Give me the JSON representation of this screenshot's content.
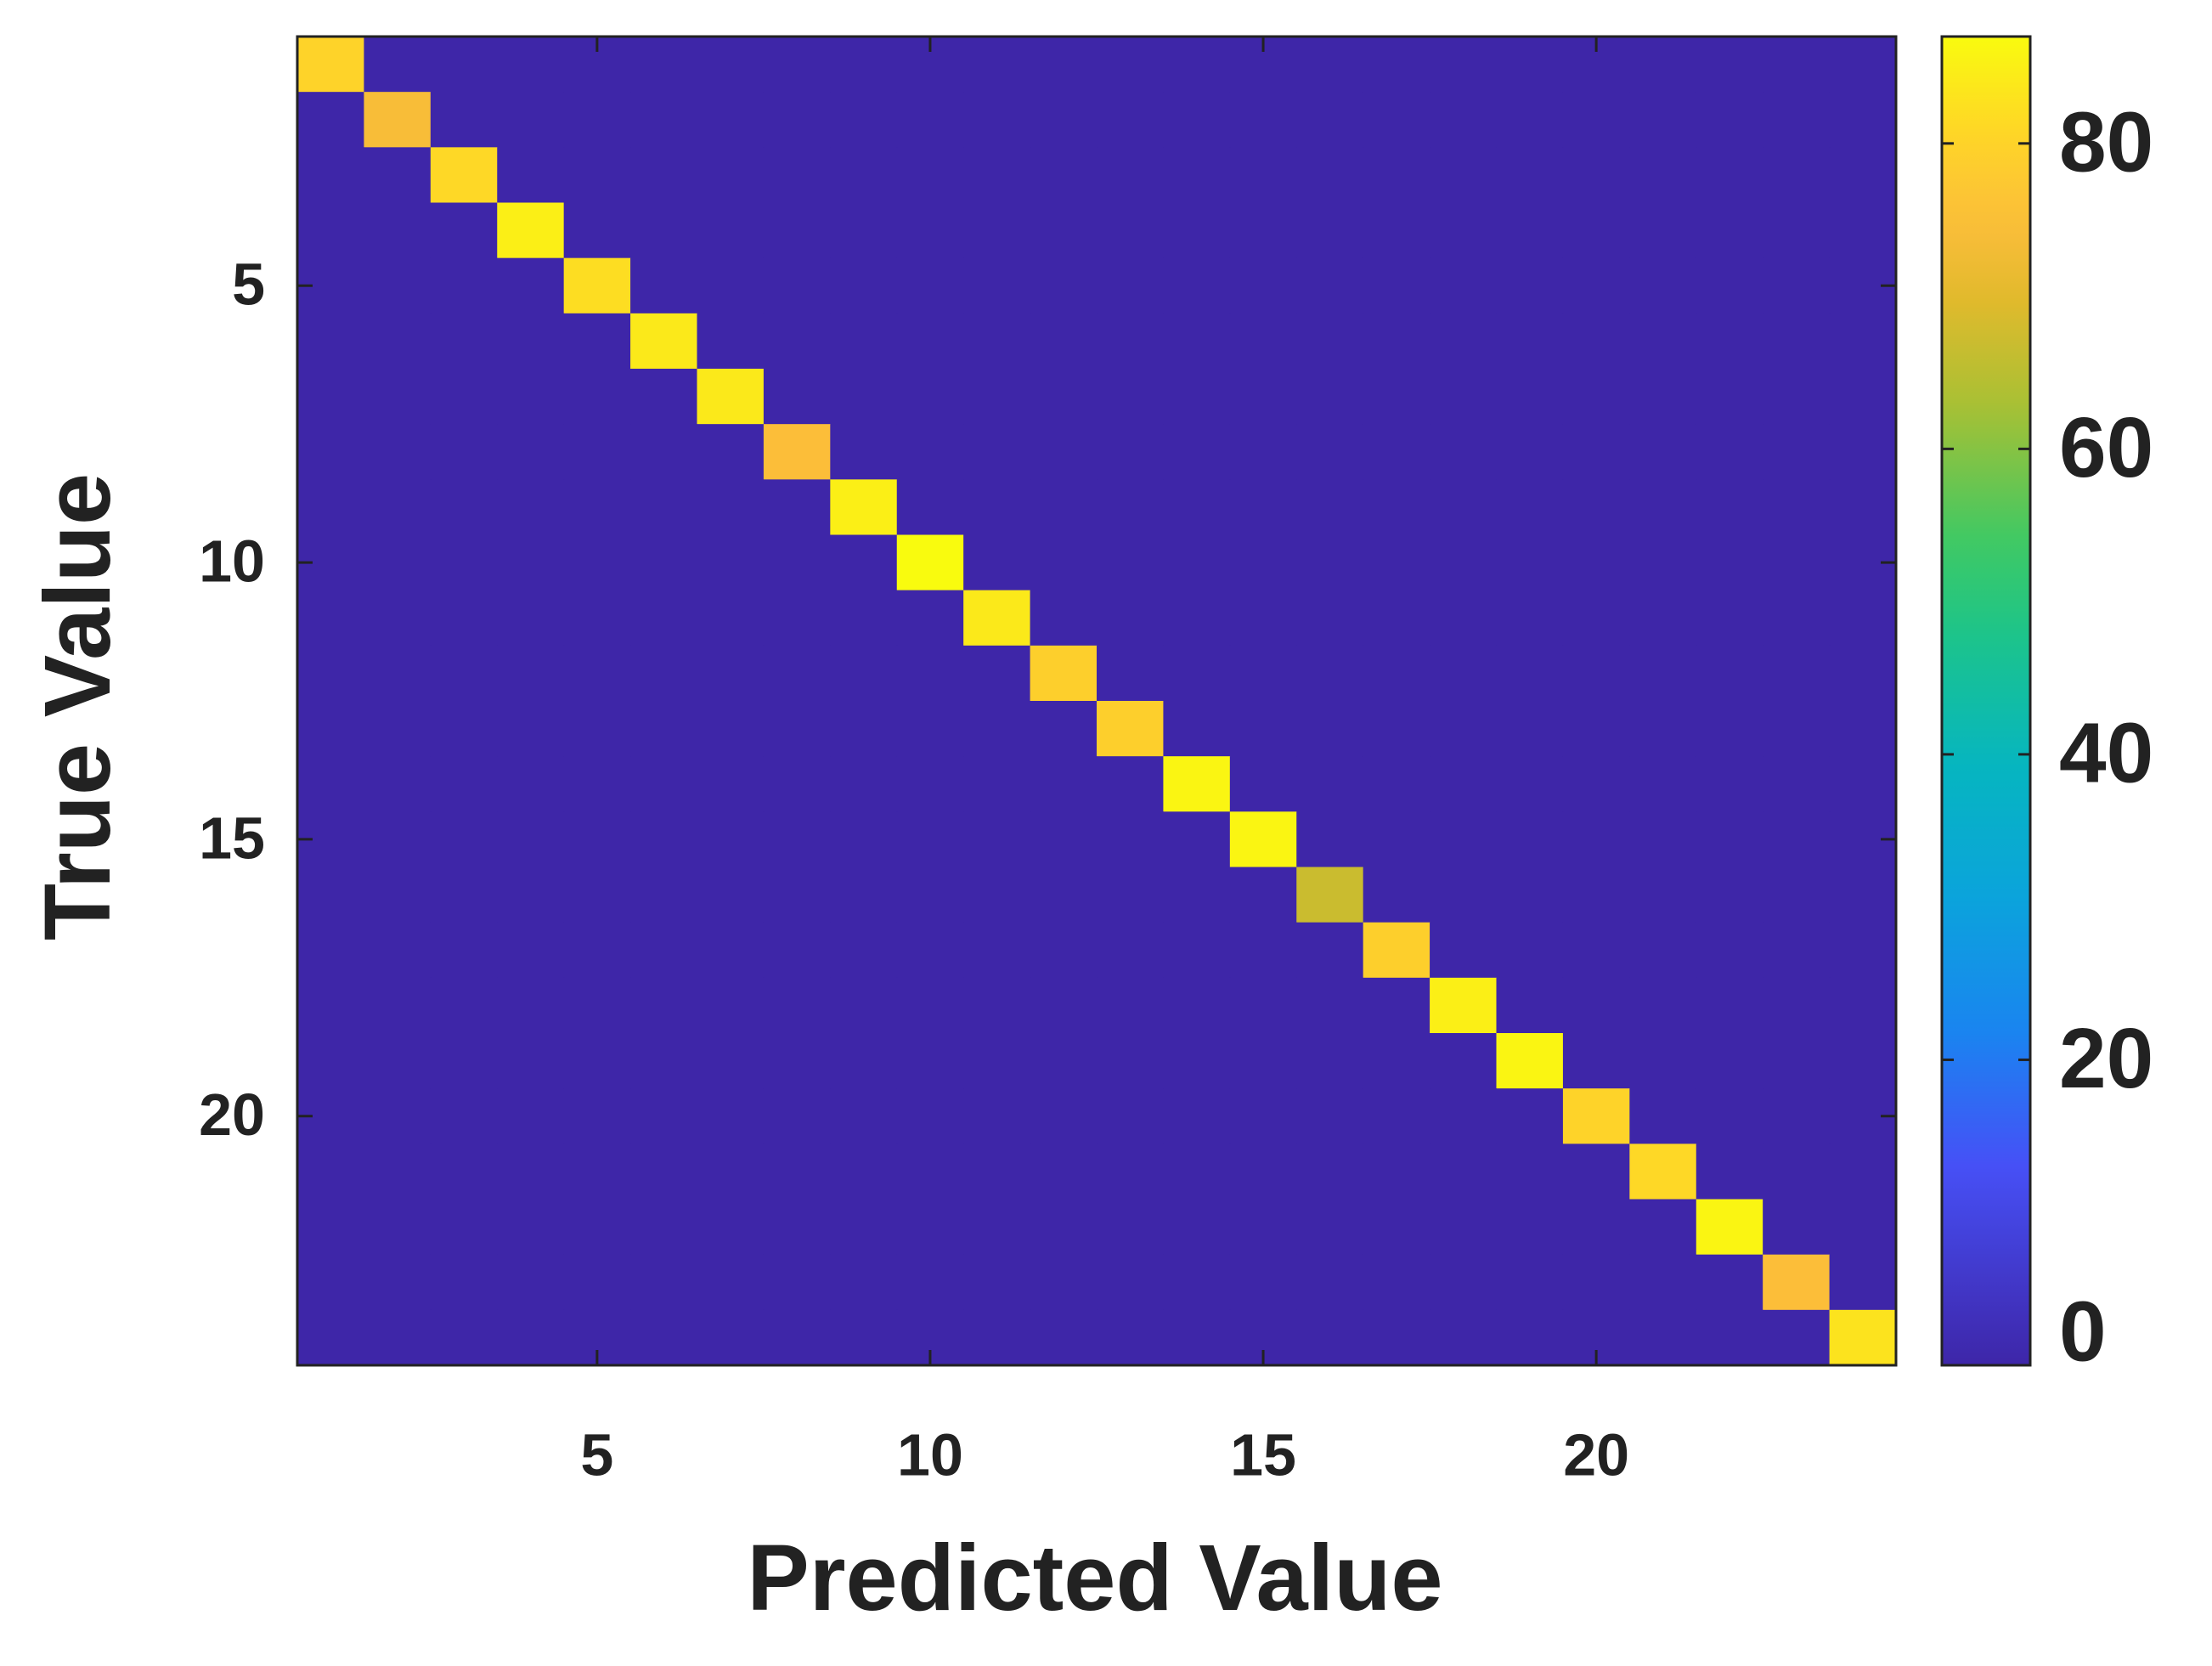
{
  "chart_data": {
    "type": "heatmap",
    "x_label": "Predicted Value",
    "y_label": "True Value",
    "x": [
      1,
      2,
      3,
      4,
      5,
      6,
      7,
      8,
      9,
      10,
      11,
      12,
      13,
      14,
      15,
      16,
      17,
      18,
      19,
      20,
      21,
      22,
      23,
      24
    ],
    "y": [
      1,
      2,
      3,
      4,
      5,
      6,
      7,
      8,
      9,
      10,
      11,
      12,
      13,
      14,
      15,
      16,
      17,
      18,
      19,
      20,
      21,
      22,
      23,
      24
    ],
    "values": [
      [
        80,
        0,
        0,
        0,
        0,
        0,
        0,
        0,
        0,
        0,
        0,
        0,
        0,
        0,
        0,
        0,
        0,
        0,
        0,
        0,
        0,
        0,
        0,
        0
      ],
      [
        0,
        74,
        0,
        0,
        0,
        0,
        0,
        0,
        0,
        0,
        0,
        0,
        0,
        0,
        0,
        0,
        0,
        0,
        0,
        0,
        0,
        0,
        0,
        0
      ],
      [
        0,
        0,
        81,
        0,
        0,
        0,
        0,
        0,
        0,
        0,
        0,
        0,
        0,
        0,
        0,
        0,
        0,
        0,
        0,
        0,
        0,
        0,
        0,
        0
      ],
      [
        0,
        0,
        0,
        85,
        0,
        0,
        0,
        0,
        0,
        0,
        0,
        0,
        0,
        0,
        0,
        0,
        0,
        0,
        0,
        0,
        0,
        0,
        0,
        0
      ],
      [
        0,
        0,
        0,
        0,
        82,
        0,
        0,
        0,
        0,
        0,
        0,
        0,
        0,
        0,
        0,
        0,
        0,
        0,
        0,
        0,
        0,
        0,
        0,
        0
      ],
      [
        0,
        0,
        0,
        0,
        0,
        84,
        0,
        0,
        0,
        0,
        0,
        0,
        0,
        0,
        0,
        0,
        0,
        0,
        0,
        0,
        0,
        0,
        0,
        0
      ],
      [
        0,
        0,
        0,
        0,
        0,
        0,
        84,
        0,
        0,
        0,
        0,
        0,
        0,
        0,
        0,
        0,
        0,
        0,
        0,
        0,
        0,
        0,
        0,
        0
      ],
      [
        0,
        0,
        0,
        0,
        0,
        0,
        0,
        75,
        0,
        0,
        0,
        0,
        0,
        0,
        0,
        0,
        0,
        0,
        0,
        0,
        0,
        0,
        0,
        0
      ],
      [
        0,
        0,
        0,
        0,
        0,
        0,
        0,
        0,
        85,
        0,
        0,
        0,
        0,
        0,
        0,
        0,
        0,
        0,
        0,
        0,
        0,
        0,
        0,
        0
      ],
      [
        0,
        0,
        0,
        0,
        0,
        0,
        0,
        0,
        0,
        87,
        0,
        0,
        0,
        0,
        0,
        0,
        0,
        0,
        0,
        0,
        0,
        0,
        0,
        0
      ],
      [
        0,
        0,
        0,
        0,
        0,
        0,
        0,
        0,
        0,
        0,
        84,
        0,
        0,
        0,
        0,
        0,
        0,
        0,
        0,
        0,
        0,
        0,
        0,
        0
      ],
      [
        0,
        0,
        0,
        0,
        0,
        0,
        0,
        0,
        0,
        0,
        0,
        79,
        0,
        0,
        0,
        0,
        0,
        0,
        0,
        0,
        0,
        0,
        0,
        0
      ],
      [
        0,
        0,
        0,
        0,
        0,
        0,
        0,
        0,
        0,
        0,
        0,
        0,
        79,
        0,
        0,
        0,
        0,
        0,
        0,
        0,
        0,
        0,
        0,
        0
      ],
      [
        0,
        0,
        0,
        0,
        0,
        0,
        0,
        0,
        0,
        0,
        0,
        0,
        0,
        86,
        0,
        0,
        0,
        0,
        0,
        0,
        0,
        0,
        0,
        0
      ],
      [
        0,
        0,
        0,
        0,
        0,
        0,
        0,
        0,
        0,
        0,
        0,
        0,
        0,
        0,
        86,
        0,
        0,
        0,
        0,
        0,
        0,
        0,
        0,
        0
      ],
      [
        0,
        0,
        0,
        0,
        0,
        0,
        0,
        0,
        0,
        0,
        0,
        0,
        0,
        0,
        0,
        67,
        0,
        0,
        0,
        0,
        0,
        0,
        0,
        0
      ],
      [
        0,
        0,
        0,
        0,
        0,
        0,
        0,
        0,
        0,
        0,
        0,
        0,
        0,
        0,
        0,
        0,
        79,
        0,
        0,
        0,
        0,
        0,
        0,
        0
      ],
      [
        0,
        0,
        0,
        0,
        0,
        0,
        0,
        0,
        0,
        0,
        0,
        0,
        0,
        0,
        0,
        0,
        0,
        85,
        0,
        0,
        0,
        0,
        0,
        0
      ],
      [
        0,
        0,
        0,
        0,
        0,
        0,
        0,
        0,
        0,
        0,
        0,
        0,
        0,
        0,
        0,
        0,
        0,
        0,
        86,
        0,
        0,
        0,
        0,
        0
      ],
      [
        0,
        0,
        0,
        0,
        0,
        0,
        0,
        0,
        0,
        0,
        0,
        0,
        0,
        0,
        0,
        0,
        0,
        0,
        0,
        80,
        0,
        0,
        0,
        0
      ],
      [
        0,
        0,
        0,
        0,
        0,
        0,
        0,
        0,
        0,
        0,
        0,
        0,
        0,
        0,
        0,
        0,
        0,
        0,
        0,
        0,
        81,
        0,
        0,
        0
      ],
      [
        0,
        0,
        0,
        0,
        0,
        0,
        0,
        0,
        0,
        0,
        0,
        0,
        0,
        0,
        0,
        0,
        0,
        0,
        0,
        0,
        0,
        86,
        0,
        0
      ],
      [
        0,
        0,
        0,
        0,
        0,
        0,
        0,
        0,
        0,
        0,
        0,
        0,
        0,
        0,
        0,
        0,
        0,
        0,
        0,
        0,
        0,
        0,
        75,
        0
      ],
      [
        0,
        0,
        0,
        0,
        0,
        0,
        0,
        0,
        0,
        0,
        0,
        0,
        0,
        0,
        0,
        0,
        0,
        0,
        0,
        0,
        0,
        0,
        0,
        83
      ]
    ],
    "xlim": [
      0.5,
      24.5
    ],
    "xticks": [
      5,
      10,
      15,
      20
    ],
    "ylim": [
      0.5,
      24.5
    ],
    "yticks": [
      5,
      10,
      15,
      20
    ],
    "y_reversed": true,
    "colormap": "parula",
    "clim": [
      0,
      87
    ],
    "cticks": [
      0,
      20,
      40,
      60,
      80
    ]
  }
}
